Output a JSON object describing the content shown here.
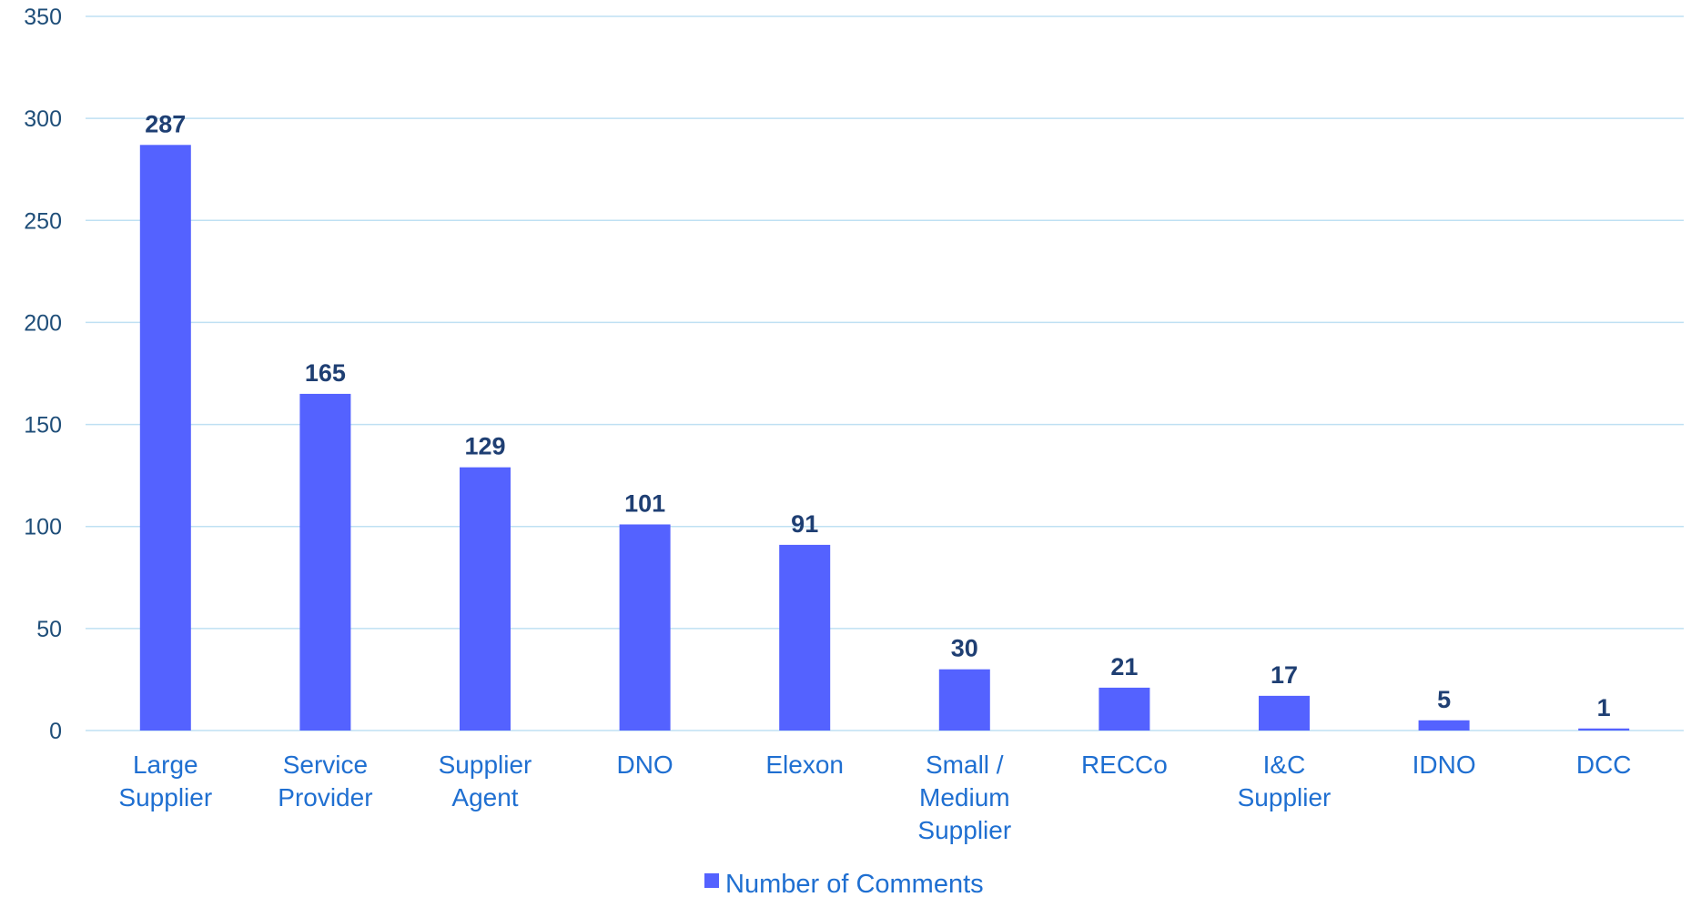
{
  "chart_data": {
    "type": "bar",
    "categories": [
      [
        "Large",
        "Supplier"
      ],
      [
        "Service",
        "Provider"
      ],
      [
        "Supplier",
        "Agent"
      ],
      [
        "DNO"
      ],
      [
        "Elexon"
      ],
      [
        "Small /",
        "Medium",
        "Supplier"
      ],
      [
        "RECCo"
      ],
      [
        "I&C",
        "Supplier"
      ],
      [
        "IDNO"
      ],
      [
        "DCC"
      ]
    ],
    "series": [
      {
        "name": "Number of Comments",
        "values": [
          287,
          165,
          129,
          101,
          91,
          30,
          21,
          17,
          5,
          1
        ]
      }
    ],
    "ylim": [
      0,
      350
    ],
    "yticks": [
      0,
      50,
      100,
      150,
      200,
      250,
      300,
      350
    ],
    "grid": true,
    "legend_position": "bottom",
    "colors": {
      "bar": "#5462ff",
      "grid": "#bfe0f3",
      "tick_text": "#1f4e79",
      "category_text": "#1f6fd1",
      "data_label_text": "#1f3f73"
    }
  }
}
